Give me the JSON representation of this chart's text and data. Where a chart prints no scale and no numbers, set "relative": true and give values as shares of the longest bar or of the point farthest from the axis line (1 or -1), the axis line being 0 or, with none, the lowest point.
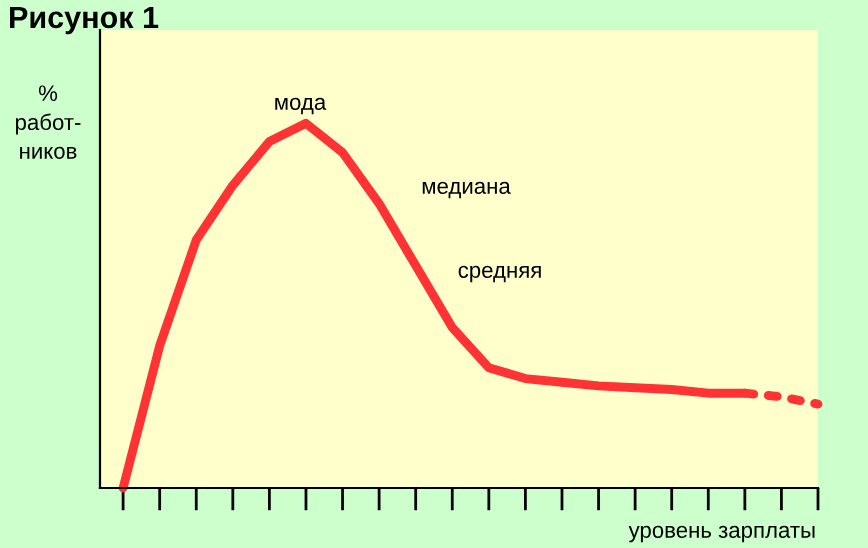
{
  "chart_data": {
    "type": "line",
    "title": "Рисунок 1",
    "ylabel": "%\nработ-\nников",
    "xlabel": "уровень зарплаты",
    "relative": true,
    "annotations": [
      "мода",
      "медиана",
      "средняя"
    ],
    "categories": [
      null,
      null,
      null,
      null,
      null,
      null,
      null,
      null,
      null,
      null,
      null,
      null,
      null,
      null,
      null,
      null,
      null,
      null,
      null,
      null
    ],
    "series": [
      {
        "color": "#ff3333",
        "line_style": "solid",
        "values": [
          0,
          0.39,
          0.68,
          0.83,
          0.95,
          1.0,
          0.92,
          0.78,
          0.61,
          0.44,
          0.33,
          0.3,
          0.29,
          0.28,
          0.275,
          0.27,
          0.26,
          0.26,
          null,
          null
        ]
      },
      {
        "color": "#ff3333",
        "line_style": "dotted",
        "values": [
          null,
          null,
          null,
          null,
          null,
          null,
          null,
          null,
          null,
          null,
          null,
          null,
          null,
          null,
          null,
          null,
          null,
          0.26,
          0.25,
          0.23
        ]
      }
    ],
    "marker": "none",
    "grid": false,
    "legend": false
  }
}
